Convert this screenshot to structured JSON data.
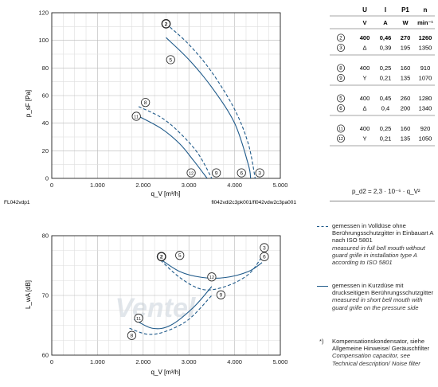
{
  "top_chart": {
    "ylabel": "p_sF [Pa]",
    "xlabel": "q_V [m³/h]",
    "y_ticks": [
      "0",
      "20",
      "40",
      "60",
      "80",
      "100",
      "120"
    ],
    "x_ticks": [
      "0",
      "1.000",
      "2.000",
      "3.000",
      "4.000",
      "5.000"
    ],
    "footer_left": "FL042vdp1",
    "footer_right": "fl042vdi2c3pk001/fl042vdw2c3pa001"
  },
  "bottom_chart": {
    "ylabel": "L_wA [dB]",
    "xlabel": "q_V [m³/h]",
    "y_ticks": [
      "60",
      "70",
      "80"
    ],
    "x_ticks": [
      "0",
      "1.000",
      "2.000",
      "3.000",
      "4.000",
      "5.000"
    ]
  },
  "table": {
    "headers": [
      "U",
      "I",
      "P1",
      "n"
    ],
    "units": [
      "V",
      "A",
      "W",
      "min⁻¹"
    ],
    "rows": [
      {
        "mark": "2",
        "U": "400",
        "I": "0,46",
        "P": "270",
        "n": "1260"
      },
      {
        "mark": "3",
        "U": "Δ",
        "I": "0,39",
        "P": "195",
        "n": "1350"
      },
      {
        "mark": "8",
        "U": "400",
        "I": "0,25",
        "P": "160",
        "n": "910"
      },
      {
        "mark": "9",
        "U": "Y",
        "I": "0,21",
        "P": "135",
        "n": "1070"
      },
      {
        "mark": "5",
        "U": "400",
        "I": "0,45",
        "P": "260",
        "n": "1280"
      },
      {
        "mark": "6",
        "U": "Δ",
        "I": "0,4",
        "P": "200",
        "n": "1340"
      },
      {
        "mark": "11",
        "U": "400",
        "I": "0,25",
        "P": "160",
        "n": "920"
      },
      {
        "mark": "12",
        "U": "Y",
        "I": "0,21",
        "P": "135",
        "n": "1050"
      }
    ],
    "formula": "p_d2 = 2,3 · 10⁻⁶ · q_V²"
  },
  "legend": {
    "dashed_de": "gemessen in Volldüse ohne Berührungsschutzgitter in Einbauart A nach ISO 5801",
    "dashed_en": "measured in full bell mouth without guard grille in installation type A according to ISO 5801",
    "solid_de": "gemessen in Kurzdüse mit druckseitigem Berührungsschutzgitter",
    "solid_en": "measured in short bell mouth with guard grille on the pressure side",
    "note_mark": "*)",
    "note_de": "Kompensationskondensator, siehe Allgemeine Hinweise/ Geräuschfilter",
    "note_en": "Compensation capacitor, see Technical description/ Noise filter"
  },
  "watermark": "Ventel",
  "colors": {
    "curve": "#1f5a8a",
    "grid": "#c8c8c8",
    "axis": "#222222"
  },
  "chart_data": [
    {
      "type": "line",
      "xlabel": "q_V [m³/h]",
      "ylabel": "p_sF [Pa]",
      "xlim": [
        0,
        5000
      ],
      "ylim": [
        0,
        120
      ],
      "grid": true,
      "series": [
        {
          "name": "2",
          "style": "dashed",
          "x": [
            2500,
            3000,
            3500,
            4000,
            4300,
            4450
          ],
          "y": [
            112,
            97,
            77,
            50,
            25,
            0
          ]
        },
        {
          "name": "5",
          "style": "solid",
          "x": [
            2500,
            3000,
            3500,
            4000,
            4300,
            4350
          ],
          "y": [
            102,
            86,
            66,
            40,
            10,
            0
          ]
        },
        {
          "name": "8",
          "style": "dashed",
          "x": [
            1900,
            2400,
            2800,
            3200,
            3500
          ],
          "y": [
            52,
            44,
            33,
            18,
            0
          ]
        },
        {
          "name": "11",
          "style": "solid",
          "x": [
            1900,
            2400,
            2800,
            3100,
            3400
          ],
          "y": [
            45,
            36,
            25,
            13,
            0
          ]
        }
      ],
      "point_labels": [
        "2",
        "5",
        "8",
        "11",
        "12",
        "9",
        "6",
        "3"
      ]
    },
    {
      "type": "line",
      "xlabel": "q_V [m³/h]",
      "ylabel": "L_wA [dB]",
      "xlim": [
        0,
        5000
      ],
      "ylim": [
        60,
        80
      ],
      "grid": true,
      "series": [
        {
          "name": "2-3",
          "style": "dashed",
          "x": [
            2300,
            2800,
            3300,
            3800,
            4300,
            4600
          ],
          "y": [
            76.5,
            73,
            71,
            71.5,
            73.5,
            76.5
          ]
        },
        {
          "name": "5-6",
          "style": "solid",
          "x": [
            2300,
            2800,
            3300,
            3800,
            4300,
            4600
          ],
          "y": [
            76.5,
            74,
            73,
            73,
            74,
            75.5
          ]
        },
        {
          "name": "8-9",
          "style": "dashed",
          "x": [
            1700,
            2100,
            2500,
            3000,
            3500
          ],
          "y": [
            64.5,
            63.5,
            64,
            66,
            70
          ]
        },
        {
          "name": "11-12",
          "style": "solid",
          "x": [
            1800,
            2200,
            2600,
            3100,
            3500
          ],
          "y": [
            66,
            64.5,
            65,
            68,
            71.5
          ]
        }
      ],
      "point_labels": [
        "2",
        "5",
        "3",
        "6",
        "12",
        "9",
        "11",
        "8"
      ]
    }
  ]
}
